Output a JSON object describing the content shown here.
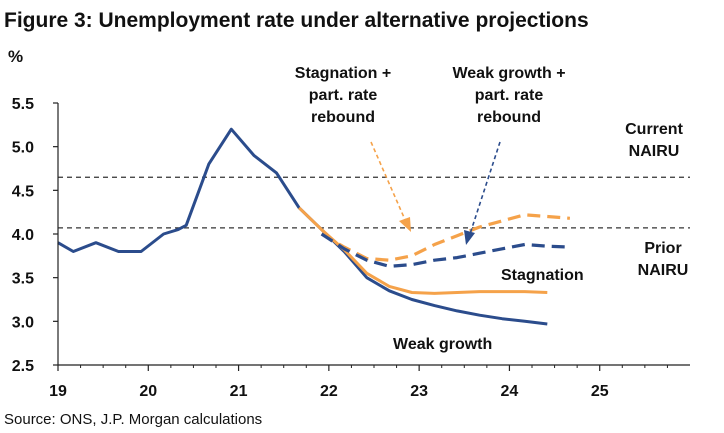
{
  "chart_data": {
    "type": "line",
    "title": "Figure 3: Unemployment rate under alternative projections",
    "ylabel": "%",
    "xlabel": "",
    "xlim": [
      2019,
      2026
    ],
    "ylim": [
      2.5,
      5.5
    ],
    "x_ticks": [
      "19",
      "20",
      "21",
      "22",
      "23",
      "24",
      "25"
    ],
    "y_ticks": [
      "2.5",
      "3.0",
      "3.5",
      "4.0",
      "4.5",
      "5.0",
      "5.5"
    ],
    "grid": false,
    "source": "Source: ONS, J.P. Morgan calculations",
    "colors": {
      "navy": "#2b4c8c",
      "orange": "#f5a24a",
      "reference": "#333333"
    },
    "reference_lines": [
      {
        "label": "Current\nNAIRU",
        "y": 4.65
      },
      {
        "label": "Prior\nNAIRU",
        "y": 4.07
      }
    ],
    "series": [
      {
        "label": "Weak growth",
        "color": "#2b4c8c",
        "dash": false,
        "points": [
          [
            2019.0,
            3.9
          ],
          [
            2019.17,
            3.8
          ],
          [
            2019.42,
            3.9
          ],
          [
            2019.67,
            3.8
          ],
          [
            2019.92,
            3.8
          ],
          [
            2020.17,
            4.0
          ],
          [
            2020.33,
            4.05
          ],
          [
            2020.42,
            4.1
          ],
          [
            2020.67,
            4.8
          ],
          [
            2020.92,
            5.2
          ],
          [
            2021.17,
            4.9
          ],
          [
            2021.42,
            4.7
          ],
          [
            2021.67,
            4.3
          ],
          [
            2021.92,
            4.05
          ],
          [
            2022.17,
            3.8
          ],
          [
            2022.42,
            3.5
          ],
          [
            2022.67,
            3.35
          ],
          [
            2022.92,
            3.25
          ],
          [
            2023.17,
            3.18
          ],
          [
            2023.42,
            3.12
          ],
          [
            2023.67,
            3.07
          ],
          [
            2023.92,
            3.03
          ],
          [
            2024.17,
            3.0
          ],
          [
            2024.42,
            2.97
          ]
        ]
      },
      {
        "label": "Stagnation",
        "color": "#f5a24a",
        "dash": false,
        "points": [
          [
            2021.67,
            4.3
          ],
          [
            2021.92,
            4.05
          ],
          [
            2022.17,
            3.82
          ],
          [
            2022.42,
            3.55
          ],
          [
            2022.67,
            3.4
          ],
          [
            2022.92,
            3.33
          ],
          [
            2023.17,
            3.32
          ],
          [
            2023.42,
            3.33
          ],
          [
            2023.67,
            3.34
          ],
          [
            2023.92,
            3.34
          ],
          [
            2024.17,
            3.34
          ],
          [
            2024.42,
            3.33
          ]
        ]
      },
      {
        "label": "Stagnation +\npart. rate\nrebound",
        "color": "#f5a24a",
        "dash": true,
        "points": [
          [
            2021.92,
            4.0
          ],
          [
            2022.17,
            3.85
          ],
          [
            2022.42,
            3.72
          ],
          [
            2022.67,
            3.7
          ],
          [
            2022.92,
            3.75
          ],
          [
            2023.17,
            3.88
          ],
          [
            2023.42,
            3.98
          ],
          [
            2023.67,
            4.08
          ],
          [
            2023.92,
            4.15
          ],
          [
            2024.17,
            4.22
          ],
          [
            2024.42,
            4.2
          ],
          [
            2024.67,
            4.18
          ]
        ]
      },
      {
        "label": "Weak growth +\npart. rate\nrebound",
        "color": "#2b4c8c",
        "dash": true,
        "points": [
          [
            2021.92,
            4.0
          ],
          [
            2022.17,
            3.83
          ],
          [
            2022.42,
            3.7
          ],
          [
            2022.67,
            3.63
          ],
          [
            2022.92,
            3.65
          ],
          [
            2023.17,
            3.7
          ],
          [
            2023.42,
            3.73
          ],
          [
            2023.67,
            3.78
          ],
          [
            2023.92,
            3.83
          ],
          [
            2024.17,
            3.88
          ],
          [
            2024.42,
            3.86
          ],
          [
            2024.67,
            3.85
          ]
        ]
      }
    ]
  }
}
